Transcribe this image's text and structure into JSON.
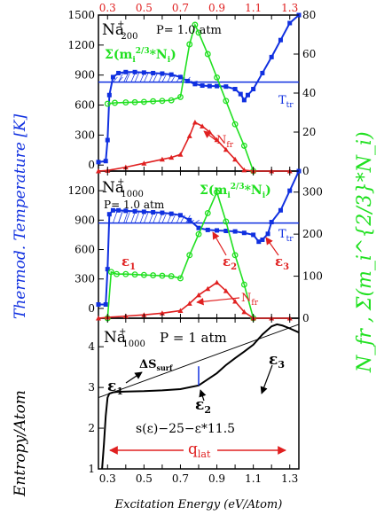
{
  "figure": {
    "xlabel": "Excitation Energy (eV/Atom)",
    "ylabel_left": "Thermod. Temperature [K]",
    "ylabel_entropy": "Entropy/Atom",
    "ylabel_right": "N_fr , Σ(m_i^{2/3}*N_i)",
    "top_ticks": [
      "0.3",
      "0.5",
      "0.7",
      "0.9",
      "1.1",
      "1.3"
    ],
    "colors": {
      "temperature": "#1030e0",
      "n_fr": "#e02020",
      "sigma": "#20e020",
      "entropy": "#000000",
      "top_axis": "#e02020"
    }
  },
  "chart_data": [
    {
      "type": "line",
      "panel": "top",
      "label_main": "Na",
      "label_sup": "+",
      "label_sub": "200",
      "pressure": "P= 1.0 atm",
      "xlim": [
        0.25,
        1.35
      ],
      "ylim_left": [
        -60,
        1500
      ],
      "ylim_right": [
        0,
        80
      ],
      "left_ticks": [
        "0",
        "300",
        "600",
        "900",
        "1200",
        "1500"
      ],
      "right_ticks": [
        "0",
        "20",
        "40",
        "60",
        "80"
      ],
      "ttr_label": "T",
      "ttr_sub": "tr",
      "ttr_value": 830,
      "sigma_label": "Σ(m",
      "sigma_sub": "i",
      "sigma_sup": "2/3",
      "sigma_tail": "*N",
      "sigma_tail_sub": "i",
      "sigma_tail_end": ")",
      "nfr_label": "N",
      "nfr_sub": "fr",
      "series": [
        {
          "name": "T",
          "axis": "left",
          "x": [
            0.25,
            0.29,
            0.3,
            0.31,
            0.33,
            0.36,
            0.4,
            0.45,
            0.5,
            0.55,
            0.6,
            0.65,
            0.7,
            0.74,
            0.78,
            0.82,
            0.86,
            0.9,
            0.95,
            1.0,
            1.03,
            1.05,
            1.07,
            1.1,
            1.15,
            1.2,
            1.25,
            1.3,
            1.35
          ],
          "y": [
            30,
            40,
            250,
            700,
            880,
            920,
            930,
            930,
            925,
            920,
            915,
            905,
            880,
            840,
            810,
            795,
            790,
            790,
            785,
            760,
            710,
            650,
            700,
            760,
            920,
            1080,
            1250,
            1420,
            1500
          ]
        },
        {
          "name": "Σ(m_i^{2/3}*N_i)",
          "axis": "right",
          "x": [
            0.3,
            0.34,
            0.4,
            0.45,
            0.5,
            0.55,
            0.6,
            0.65,
            0.7,
            0.75,
            0.78,
            0.8,
            0.85,
            0.9,
            0.95,
            1.0,
            1.05,
            1.1
          ],
          "y": [
            34.5,
            35,
            35.2,
            35.3,
            35.5,
            35.8,
            36,
            36.3,
            38,
            65,
            75,
            71,
            60,
            48,
            36,
            24,
            13,
            0
          ]
        },
        {
          "name": "N_fr",
          "axis": "right",
          "x": [
            0.25,
            0.3,
            0.4,
            0.5,
            0.6,
            0.65,
            0.7,
            0.75,
            0.78,
            0.82,
            0.86,
            0.9,
            0.95,
            1.0,
            1.05,
            1.1,
            1.2,
            1.3
          ],
          "y": [
            0,
            0.3,
            2,
            4,
            6,
            7,
            8.5,
            18,
            25,
            23,
            20,
            16,
            11,
            6,
            0.5,
            0,
            0,
            0
          ]
        }
      ]
    },
    {
      "type": "line",
      "panel": "middle",
      "label_main": "Na",
      "label_sup": "+",
      "label_sub": "1000",
      "pressure": "P= 1.0 atm",
      "xlim": [
        0.25,
        1.35
      ],
      "ylim_left": [
        -100,
        1400
      ],
      "ylim_right": [
        0,
        350
      ],
      "left_ticks": [
        "0",
        "300",
        "600",
        "900",
        "1200"
      ],
      "right_ticks": [
        "0",
        "100",
        "200",
        "300"
      ],
      "ttr_label": "T",
      "ttr_sub": "tr",
      "ttr_value": 870,
      "sigma_label": "Σ(m",
      "sigma_sub": "i",
      "sigma_sup": "2/3",
      "sigma_tail": "*N",
      "sigma_tail_sub": "i",
      "sigma_tail_end": ")",
      "nfr_label": "N",
      "nfr_sub": "fr",
      "eps1": "ε",
      "eps1_sub": "1",
      "eps2": "ε",
      "eps2_sub": "2",
      "eps3": "ε",
      "eps3_sub": "3",
      "series": [
        {
          "name": "T",
          "axis": "left",
          "x": [
            0.25,
            0.29,
            0.3,
            0.31,
            0.33,
            0.36,
            0.4,
            0.45,
            0.5,
            0.55,
            0.6,
            0.65,
            0.7,
            0.75,
            0.8,
            0.85,
            0.9,
            0.95,
            1.0,
            1.05,
            1.1,
            1.13,
            1.15,
            1.18,
            1.2,
            1.25,
            1.3,
            1.35
          ],
          "y": [
            40,
            40,
            400,
            960,
            1000,
            1000,
            995,
            990,
            985,
            980,
            975,
            965,
            950,
            900,
            820,
            800,
            795,
            790,
            785,
            770,
            750,
            680,
            700,
            760,
            880,
            1000,
            1200,
            1400
          ]
        },
        {
          "name": "Σ(m_i^{2/3}*N_i)",
          "axis": "right",
          "x": [
            0.3,
            0.32,
            0.35,
            0.4,
            0.45,
            0.5,
            0.55,
            0.6,
            0.65,
            0.7,
            0.75,
            0.8,
            0.85,
            0.9,
            0.95,
            1.0,
            1.05,
            1.1
          ],
          "y": [
            0,
            110,
            105,
            105,
            104,
            103,
            102,
            101,
            100,
            95,
            150,
            200,
            250,
            300,
            230,
            150,
            80,
            0
          ]
        },
        {
          "name": "N_fr",
          "axis": "right",
          "x": [
            0.25,
            0.3,
            0.4,
            0.5,
            0.6,
            0.7,
            0.75,
            0.8,
            0.85,
            0.9,
            0.95,
            1.0,
            1.05,
            1.1,
            1.2,
            1.3
          ],
          "y": [
            0,
            2,
            5,
            8,
            12,
            18,
            35,
            55,
            70,
            85,
            65,
            40,
            15,
            0,
            0,
            0
          ]
        }
      ]
    },
    {
      "type": "line",
      "panel": "bottom",
      "label_main": "Na",
      "label_sup": "+",
      "label_sub": "1000",
      "pressure": "P = 1 atm",
      "xlim": [
        0.25,
        1.35
      ],
      "ylim": [
        1,
        4.7
      ],
      "left_ticks": [
        "1",
        "2",
        "3",
        "4"
      ],
      "x_ticks": [
        "0.3",
        "0.5",
        "0.7",
        "0.9",
        "1.1",
        "1.3"
      ],
      "ds_label": "ΔS",
      "ds_sub": "surf",
      "formula": "s(ε)−25−ε*11.5",
      "q_label": "q",
      "q_sub": "lat",
      "eps1": "ε",
      "eps1_sub": "1",
      "eps2": "ε",
      "eps2_sub": "2",
      "eps3": "ε",
      "eps3_sub": "3",
      "series": [
        {
          "name": "s(ε)−25−ε*11.5",
          "x": [
            0.27,
            0.28,
            0.29,
            0.3,
            0.31,
            0.33,
            0.35,
            0.4,
            0.5,
            0.6,
            0.7,
            0.8,
            0.85,
            0.9,
            0.95,
            1.0,
            1.05,
            1.1,
            1.15,
            1.2,
            1.23,
            1.26,
            1.3,
            1.35
          ],
          "y": [
            1.0,
            1.6,
            2.3,
            2.75,
            2.85,
            2.88,
            2.89,
            2.9,
            2.91,
            2.93,
            2.96,
            3.05,
            3.2,
            3.35,
            3.55,
            3.72,
            3.88,
            4.05,
            4.3,
            4.5,
            4.55,
            4.52,
            4.45,
            4.35
          ]
        },
        {
          "name": "tangent",
          "x": [
            0.25,
            1.35
          ],
          "y": [
            2.75,
            4.55
          ]
        }
      ]
    }
  ]
}
